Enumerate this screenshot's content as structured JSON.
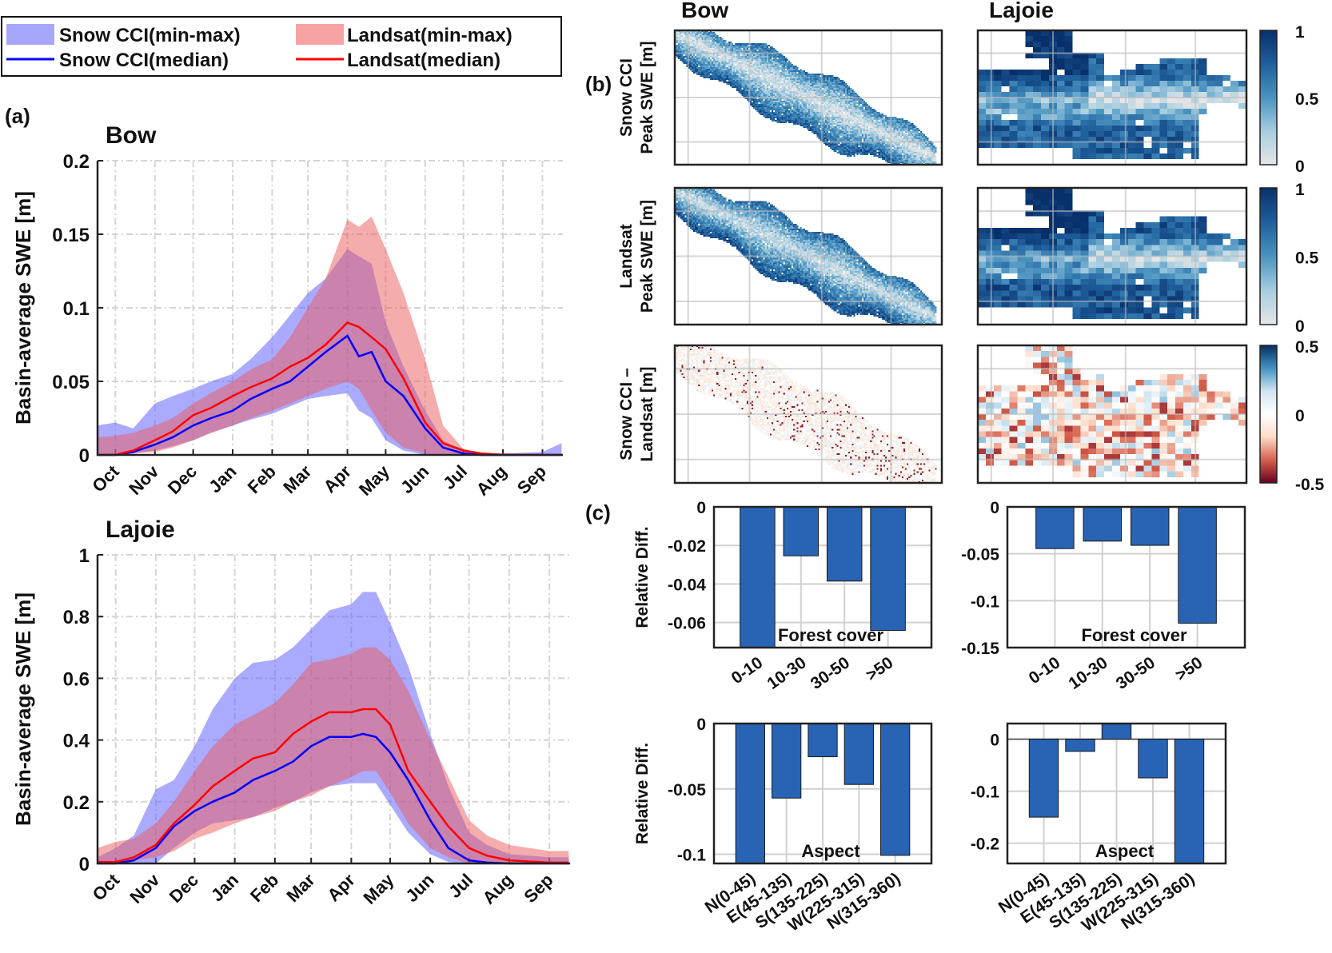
{
  "legend": {
    "items": [
      {
        "label": "Snow CCI(min-max)",
        "kind": "band",
        "color": "#a6a6fb"
      },
      {
        "label": "Landsat(min-max)",
        "kind": "band",
        "color": "#f6a3a3"
      },
      {
        "label": "Snow CCI(median)",
        "kind": "line",
        "color": "#0000ff"
      },
      {
        "label": "Landsat(median)",
        "kind": "line",
        "color": "#ff0000"
      }
    ]
  },
  "panel_labels": {
    "a": "(a)",
    "b": "(b)",
    "c": "(c)"
  },
  "colors": {
    "cci_band": "#6464ff",
    "landsat_band": "#ec5a5a",
    "cci_line": "#0000ff",
    "landsat_line": "#ff0000",
    "bar": "#2863b4"
  },
  "chart_data": [
    {
      "type": "area",
      "title": "Bow",
      "ylabel": "Basin-average SWE [m]",
      "xlim": [
        "09-17",
        "09-17"
      ],
      "xticks": [
        "10-01",
        "11-01",
        "12-01",
        "01-01",
        "02-01",
        "03-01",
        "04-01",
        "05-01",
        "06-01",
        "07-01",
        "08-01",
        "09-01"
      ],
      "xticklabels": [
        "Oct",
        "Nov",
        "Dec",
        "Jan",
        "Feb",
        "Mar",
        "Apr",
        "May",
        "Jun",
        "Jul",
        "Aug",
        "Sep"
      ],
      "ylim": [
        0,
        0.2
      ],
      "yticks": [
        0,
        0.05,
        0.1,
        0.15,
        0.2
      ],
      "yticklabels": [
        "0",
        "0.05",
        "0.1",
        "0.15",
        "0.2"
      ],
      "grid": true,
      "x": [
        "09-17",
        "10-01",
        "10-15",
        "11-01",
        "11-15",
        "12-01",
        "12-15",
        "01-01",
        "01-15",
        "02-01",
        "02-15",
        "03-01",
        "03-15",
        "04-01",
        "04-10",
        "04-20",
        "05-01",
        "05-15",
        "06-01",
        "06-15",
        "07-01",
        "07-15",
        "08-01",
        "09-01",
        "09-16"
      ],
      "series": [
        {
          "name": "Snow CCI(min-max)",
          "kind": "band",
          "min": [
            0,
            0,
            0.001,
            0.003,
            0.006,
            0.01,
            0.015,
            0.02,
            0.024,
            0.028,
            0.033,
            0.038,
            0.04,
            0.042,
            0.03,
            0.025,
            0.01,
            0.003,
            0,
            0,
            0,
            0,
            0,
            0,
            0
          ],
          "max": [
            0.02,
            0.022,
            0.018,
            0.035,
            0.04,
            0.045,
            0.05,
            0.055,
            0.065,
            0.08,
            0.095,
            0.11,
            0.12,
            0.14,
            0.135,
            0.13,
            0.09,
            0.06,
            0.03,
            0.01,
            0.002,
            0.001,
            0.001,
            0.002,
            0.008
          ]
        },
        {
          "name": "Landsat(min-max)",
          "kind": "band",
          "min": [
            0,
            0,
            0.001,
            0.002,
            0.005,
            0.01,
            0.015,
            0.02,
            0.025,
            0.03,
            0.035,
            0.04,
            0.045,
            0.05,
            0.045,
            0.03,
            0.015,
            0.005,
            0.001,
            0,
            0,
            0,
            0,
            0,
            0
          ],
          "max": [
            0.012,
            0.013,
            0.015,
            0.02,
            0.025,
            0.035,
            0.042,
            0.05,
            0.058,
            0.065,
            0.08,
            0.1,
            0.12,
            0.16,
            0.155,
            0.162,
            0.14,
            0.11,
            0.065,
            0.02,
            0.004,
            0.001,
            0.001,
            0,
            0.001
          ]
        },
        {
          "name": "Snow CCI(median)",
          "kind": "line",
          "values": [
            0,
            0,
            0.002,
            0.007,
            0.012,
            0.02,
            0.025,
            0.03,
            0.038,
            0.045,
            0.05,
            0.06,
            0.07,
            0.081,
            0.067,
            0.07,
            0.05,
            0.04,
            0.018,
            0.005,
            0.001,
            0,
            0,
            0,
            0
          ]
        },
        {
          "name": "Landsat(median)",
          "kind": "line",
          "values": [
            0,
            0,
            0.003,
            0.01,
            0.016,
            0.027,
            0.032,
            0.04,
            0.046,
            0.052,
            0.06,
            0.066,
            0.075,
            0.09,
            0.087,
            0.08,
            0.072,
            0.052,
            0.022,
            0.008,
            0.003,
            0.001,
            0,
            0,
            0
          ]
        }
      ]
    },
    {
      "type": "area",
      "title": "Lajoie",
      "ylabel": "Basin-average SWE [m]",
      "xlim": [
        "09-17",
        "09-17"
      ],
      "xticks": [
        "10-01",
        "11-01",
        "12-01",
        "01-01",
        "02-01",
        "03-01",
        "04-01",
        "05-01",
        "06-01",
        "07-01",
        "08-01",
        "09-01"
      ],
      "xticklabels": [
        "Oct",
        "Nov",
        "Dec",
        "Jan",
        "Feb",
        "Mar",
        "Apr",
        "May",
        "Jun",
        "Jul",
        "Aug",
        "Sep"
      ],
      "ylim": [
        0,
        1
      ],
      "yticks": [
        0,
        0.2,
        0.4,
        0.6,
        0.8,
        1
      ],
      "yticklabels": [
        "0",
        "0.2",
        "0.4",
        "0.6",
        "0.8",
        "1"
      ],
      "grid": true,
      "x": [
        "09-17",
        "10-01",
        "10-15",
        "11-01",
        "11-15",
        "12-01",
        "12-15",
        "01-01",
        "01-15",
        "02-01",
        "02-15",
        "03-01",
        "03-15",
        "04-01",
        "04-10",
        "04-20",
        "05-01",
        "05-15",
        "06-01",
        "06-15",
        "07-01",
        "07-15",
        "08-01",
        "09-01",
        "09-16"
      ],
      "series": [
        {
          "name": "Snow CCI(min-max)",
          "kind": "band",
          "min": [
            0,
            0,
            0,
            0,
            0.05,
            0.1,
            0.13,
            0.14,
            0.15,
            0.18,
            0.2,
            0.23,
            0.25,
            0.26,
            0.26,
            0.26,
            0.19,
            0.1,
            0.03,
            0.005,
            0,
            0,
            0,
            0,
            0
          ],
          "max": [
            0.02,
            0.05,
            0.09,
            0.24,
            0.27,
            0.38,
            0.5,
            0.6,
            0.65,
            0.66,
            0.7,
            0.76,
            0.82,
            0.84,
            0.88,
            0.88,
            0.78,
            0.64,
            0.42,
            0.25,
            0.1,
            0.06,
            0.03,
            0.02,
            0.02
          ]
        },
        {
          "name": "Landsat(min-max)",
          "kind": "band",
          "min": [
            0,
            0,
            0.01,
            0.02,
            0.04,
            0.08,
            0.1,
            0.13,
            0.15,
            0.17,
            0.2,
            0.22,
            0.25,
            0.28,
            0.3,
            0.3,
            0.23,
            0.13,
            0.05,
            0.02,
            0,
            0,
            0,
            0,
            0
          ],
          "max": [
            0.05,
            0.07,
            0.08,
            0.13,
            0.2,
            0.3,
            0.38,
            0.45,
            0.48,
            0.52,
            0.58,
            0.65,
            0.66,
            0.68,
            0.7,
            0.7,
            0.66,
            0.56,
            0.4,
            0.28,
            0.14,
            0.09,
            0.06,
            0.04,
            0.04
          ]
        },
        {
          "name": "Snow CCI(median)",
          "kind": "line",
          "values": [
            0,
            0,
            0.01,
            0.05,
            0.12,
            0.17,
            0.2,
            0.23,
            0.27,
            0.3,
            0.33,
            0.38,
            0.41,
            0.41,
            0.42,
            0.41,
            0.36,
            0.27,
            0.14,
            0.05,
            0.01,
            0.003,
            0,
            0,
            0
          ]
        },
        {
          "name": "Landsat(median)",
          "kind": "line",
          "values": [
            0.005,
            0.005,
            0.02,
            0.06,
            0.13,
            0.19,
            0.25,
            0.3,
            0.34,
            0.36,
            0.42,
            0.46,
            0.49,
            0.49,
            0.5,
            0.5,
            0.45,
            0.3,
            0.2,
            0.12,
            0.05,
            0.025,
            0.01,
            0.003,
            0.003
          ]
        }
      ]
    },
    {
      "type": "bar",
      "basin": "Bow",
      "annotation": "Forest cover",
      "ylabel": "Relative Diff.",
      "categories": [
        "0-10",
        "10-30",
        "30-50",
        ">50"
      ],
      "values": [
        -0.073,
        -0.0254,
        -0.0385,
        -0.0641
      ],
      "ylim": [
        -0.073,
        0
      ],
      "yticks": [
        0,
        -0.02,
        -0.04,
        -0.06
      ],
      "yticklabels": [
        "0",
        "-0.02",
        "-0.04",
        "-0.06"
      ],
      "grid": true
    },
    {
      "type": "bar",
      "basin": "Lajoie",
      "annotation": "Forest cover",
      "ylabel": "",
      "categories": [
        "0-10",
        "10-30",
        "30-50",
        ">50"
      ],
      "values": [
        -0.0445,
        -0.0365,
        -0.041,
        -0.124
      ],
      "ylim": [
        -0.15,
        0
      ],
      "yticks": [
        0,
        -0.05,
        -0.1,
        -0.15
      ],
      "yticklabels": [
        "0",
        "-0.05",
        "-0.1",
        "-0.15"
      ],
      "grid": true
    },
    {
      "type": "bar",
      "basin": "Bow",
      "annotation": "Aspect",
      "ylabel": "Relative Diff.",
      "categories": [
        "N(0-45)",
        "E(45-135)",
        "S(135-225)",
        "W(225-315)",
        "N(315-360)"
      ],
      "values": [
        -0.107,
        -0.057,
        -0.0254,
        -0.0466,
        -0.1008
      ],
      "ylim": [
        -0.107,
        0
      ],
      "yticks": [
        0,
        -0.05,
        -0.1
      ],
      "yticklabels": [
        "0",
        "-0.05",
        "-0.1"
      ],
      "grid": true
    },
    {
      "type": "bar",
      "basin": "Lajoie",
      "annotation": "Aspect",
      "ylabel": "",
      "categories": [
        "N(0-45)",
        "E(45-135)",
        "S(135-225)",
        "W(225-315)",
        "N(315-360)"
      ],
      "values": [
        -0.15,
        -0.0235,
        0.03,
        -0.0745,
        -0.239
      ],
      "ylim": [
        -0.239,
        0.03
      ],
      "yticks": [
        0,
        -0.1,
        -0.2
      ],
      "yticklabels": [
        "0",
        "-0.1",
        "-0.2"
      ],
      "grid": true
    }
  ],
  "maps": {
    "columns": [
      "Bow",
      "Lajoie"
    ],
    "rows": [
      {
        "label_lines": [
          "Snow CCI",
          "Peak SWE [m]"
        ],
        "colormap": "sequential-blues",
        "colorbar_ticks": [
          "1",
          "0.5",
          "0"
        ],
        "range": [
          0,
          1
        ]
      },
      {
        "label_lines": [
          "Landsat",
          "Peak SWE [m]"
        ],
        "colormap": "sequential-blues",
        "colorbar_ticks": [
          "1",
          "0.5",
          "0"
        ],
        "range": [
          0,
          1
        ]
      },
      {
        "label_lines": [
          "Snow CCI –",
          "Landsat [m]"
        ],
        "colormap": "diverging-red-blue",
        "colorbar_ticks": [
          "0.5",
          "0",
          "-0.5"
        ],
        "range": [
          -0.5,
          0.5
        ]
      }
    ]
  }
}
